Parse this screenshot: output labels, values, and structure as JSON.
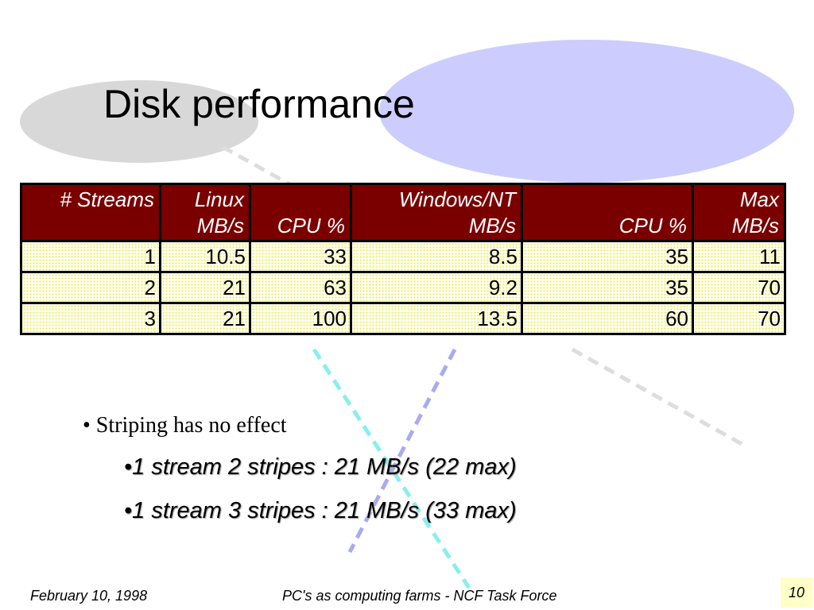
{
  "slide": {
    "title": "Disk performance"
  },
  "table": {
    "headers": [
      {
        "line1": "# Streams",
        "line2": ""
      },
      {
        "line1": "Linux",
        "line2": "MB/s"
      },
      {
        "line1": "",
        "line2": "CPU %"
      },
      {
        "line1": "Windows/NT",
        "line2": "MB/s"
      },
      {
        "line1": "",
        "line2": "CPU %"
      },
      {
        "line1": "Max",
        "line2": "MB/s"
      }
    ],
    "rows": [
      [
        "1",
        "10.5",
        "33",
        "8.5",
        "35",
        "11"
      ],
      [
        "2",
        "21",
        "63",
        "9.2",
        "35",
        "70"
      ],
      [
        "3",
        "21",
        "100",
        "13.5",
        "60",
        "70"
      ]
    ]
  },
  "bullets": {
    "main": "• Striping has no effect",
    "sub": [
      "•1 stream 2 stripes : 21 MB/s (22 max)",
      "•1 stream 3 stripes : 21 MB/s (33 max)"
    ]
  },
  "footer": {
    "date": "February 10, 1998",
    "center": "PC's as computing farms - NCF Task Force",
    "page_number": "10"
  },
  "colors": {
    "header_bg": "#7a0000",
    "cell_bg": "#fffff0",
    "ellipse_gray": "#d8d8d8",
    "ellipse_blue": "#ccccff",
    "line_cyan": "#88eeee",
    "line_blue": "#aaaaee",
    "line_gray": "#dddddd",
    "page_box": "#ffffc8"
  }
}
